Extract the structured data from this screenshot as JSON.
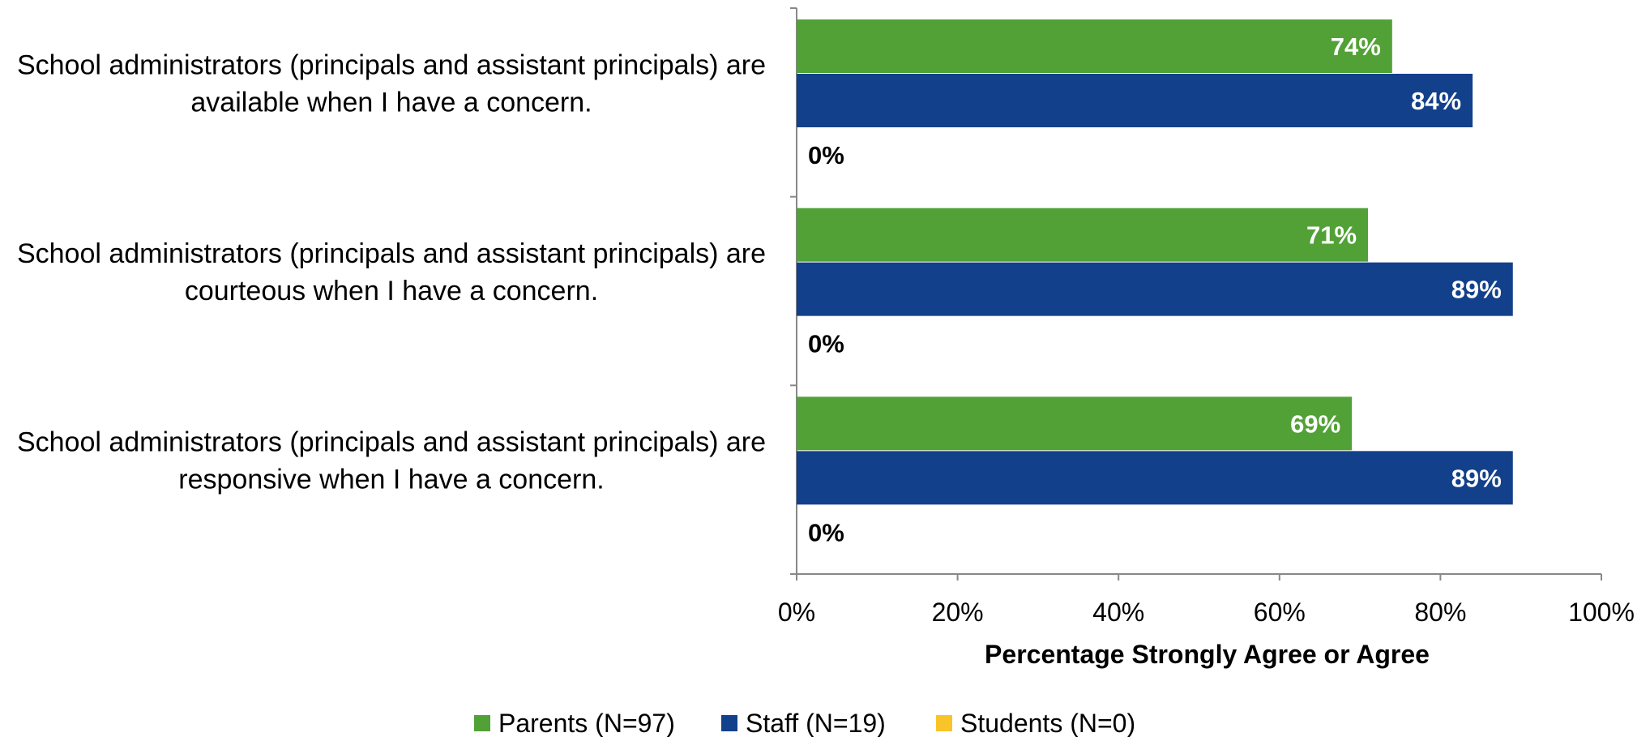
{
  "chart_data": {
    "type": "bar",
    "orientation": "horizontal",
    "categories": [
      [
        "School administrators (principals and assistant principals) are",
        "available when I have a concern."
      ],
      [
        "School administrators (principals and assistant principals) are",
        "courteous when I have a concern."
      ],
      [
        "School administrators (principals and assistant principals) are",
        "responsive when I have a concern."
      ]
    ],
    "series": [
      {
        "name": "Parents (N=97)",
        "color": "#52a137",
        "values": [
          74,
          71,
          69
        ],
        "labels": [
          "74%",
          "71%",
          "69%"
        ]
      },
      {
        "name": "Staff (N=19)",
        "color": "#13408a",
        "values": [
          84,
          89,
          89
        ],
        "labels": [
          "84%",
          "89%",
          "89%"
        ]
      },
      {
        "name": "Students (N=0)",
        "color": "#f9c32a",
        "values": [
          0,
          0,
          0
        ],
        "labels": [
          "0%",
          "0%",
          "0%"
        ]
      }
    ],
    "xlabel": "Percentage Strongly Agree or Agree",
    "xlim": [
      0,
      100
    ],
    "xticks": [
      "0%",
      "20%",
      "40%",
      "60%",
      "80%",
      "100%"
    ],
    "grid": false,
    "legend": "bottom"
  }
}
